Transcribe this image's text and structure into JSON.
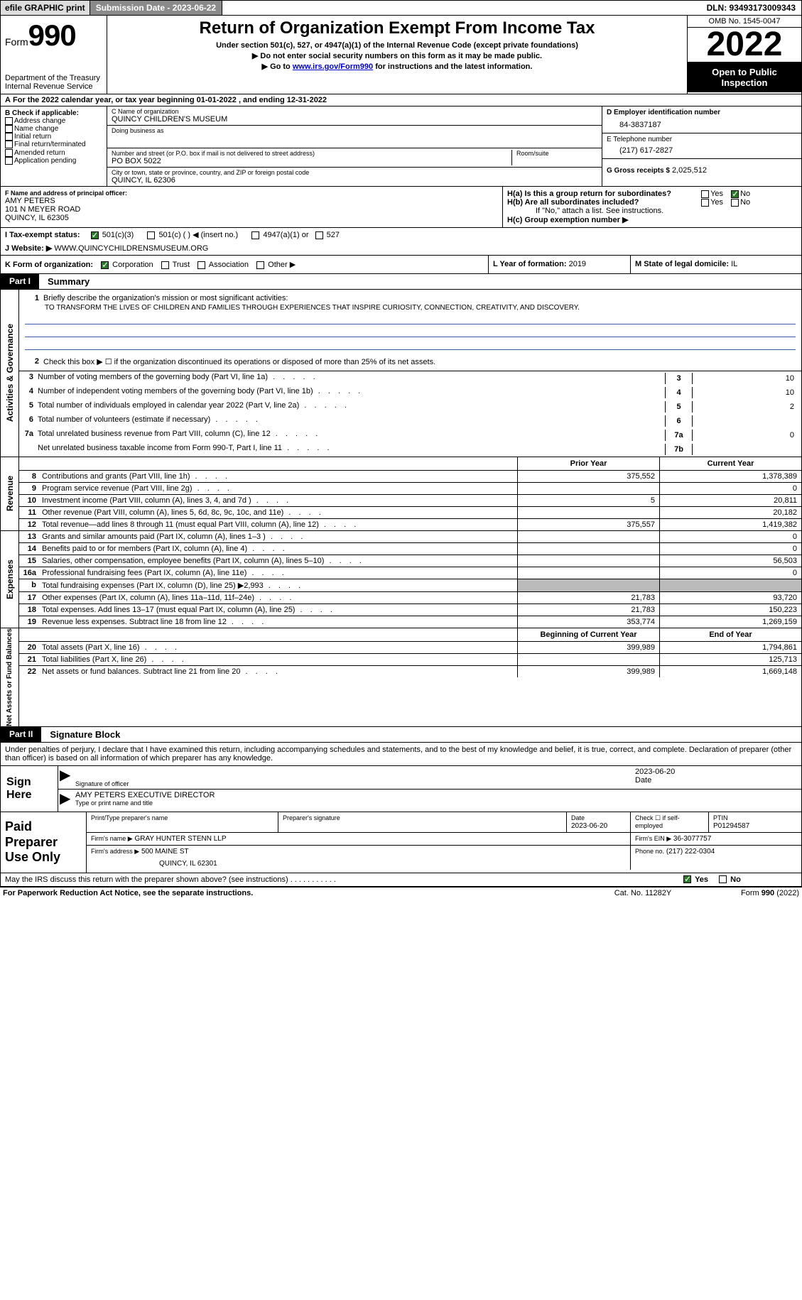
{
  "topbar": {
    "efile": "efile GRAPHIC print",
    "subdate": "Submission Date - 2023-06-22",
    "dln": "DLN: 93493173009343"
  },
  "header": {
    "form_label": "Form",
    "form_num": "990",
    "dept": "Department of the Treasury",
    "irs": "Internal Revenue Service",
    "title": "Return of Organization Exempt From Income Tax",
    "sub": "Under section 501(c), 527, or 4947(a)(1) of the Internal Revenue Code (except private foundations)",
    "note1": "▶ Do not enter social security numbers on this form as it may be made public.",
    "note2_pre": "▶ Go to ",
    "note2_link": "www.irs.gov/Form990",
    "note2_post": " for instructions and the latest information.",
    "omb": "OMB No. 1545-0047",
    "year": "2022",
    "inspect": "Open to Public Inspection"
  },
  "rowA": {
    "label": "A",
    "text": "For the 2022 calendar year, or tax year beginning 01-01-2022    , and ending 12-31-2022"
  },
  "B": {
    "label": "B Check if applicable:",
    "opts": [
      "Address change",
      "Name change",
      "Initial return",
      "Final return/terminated",
      "Amended return",
      "Application pending"
    ]
  },
  "C": {
    "name_lbl": "C Name of organization",
    "name": "QUINCY CHILDREN'S MUSEUM",
    "dba_lbl": "Doing business as",
    "addr_lbl": "Number and street (or P.O. box if mail is not delivered to street address)",
    "room_lbl": "Room/suite",
    "addr": "PO BOX 5022",
    "city_lbl": "City or town, state or province, country, and ZIP or foreign postal code",
    "city": "QUINCY, IL  62306"
  },
  "DEFG": {
    "d_lbl": "D Employer identification number",
    "d": "84-3837187",
    "e_lbl": "E Telephone number",
    "e": "(217) 617-2827",
    "g_lbl": "G Gross receipts $",
    "g": "2,025,512"
  },
  "F": {
    "lbl": "F  Name and address of principal officer:",
    "name": "AMY PETERS",
    "addr1": "101 N MEYER ROAD",
    "addr2": "QUINCY, IL  62305"
  },
  "H": {
    "a_lbl": "H(a)  Is this a group return for subordinates?",
    "b_lbl": "H(b)  Are all subordinates included?",
    "b_note": "If \"No,\" attach a list. See instructions.",
    "c_lbl": "H(c)  Group exemption number ▶"
  },
  "I": {
    "lbl": "I   Tax-exempt status:",
    "opts": [
      "501(c)(3)",
      "501(c) (  ) ◀ (insert no.)",
      "4947(a)(1) or",
      "527"
    ]
  },
  "J": {
    "lbl": "J   Website: ▶",
    "val": "WWW.QUINCYCHILDRENSMUSEUM.ORG"
  },
  "K": {
    "lbl": "K Form of organization:",
    "opts": [
      "Corporation",
      "Trust",
      "Association",
      "Other ▶"
    ]
  },
  "L": {
    "lbl": "L Year of formation:",
    "val": "2019"
  },
  "M": {
    "lbl": "M State of legal domicile:",
    "val": "IL"
  },
  "part1": {
    "tab": "Part I",
    "title": "Summary"
  },
  "summary": {
    "vlabel1": "Activities & Governance",
    "line1_lbl": "Briefly describe the organization's mission or most significant activities:",
    "line1_val": "TO TRANSFORM THE LIVES OF CHILDREN AND FAMILIES THROUGH EXPERIENCES THAT INSPIRE CURIOSITY, CONNECTION, CREATIVITY, AND DISCOVERY.",
    "line2": "Check this box ▶ ☐  if the organization discontinued its operations or disposed of more than 25% of its net assets.",
    "rows1": [
      {
        "n": "3",
        "t": "Number of voting members of the governing body (Part VI, line 1a)",
        "k": "3",
        "v": "10"
      },
      {
        "n": "4",
        "t": "Number of independent voting members of the governing body (Part VI, line 1b)",
        "k": "4",
        "v": "10"
      },
      {
        "n": "5",
        "t": "Total number of individuals employed in calendar year 2022 (Part V, line 2a)",
        "k": "5",
        "v": "2"
      },
      {
        "n": "6",
        "t": "Total number of volunteers (estimate if necessary)",
        "k": "6",
        "v": ""
      },
      {
        "n": "7a",
        "t": "Total unrelated business revenue from Part VIII, column (C), line 12",
        "k": "7a",
        "v": "0"
      },
      {
        "n": "",
        "t": "Net unrelated business taxable income from Form 990-T, Part I, line 11",
        "k": "7b",
        "v": ""
      }
    ]
  },
  "revenue": {
    "vlabel": "Revenue",
    "hdr_prior": "Prior Year",
    "hdr_curr": "Current Year",
    "rows": [
      {
        "n": "8",
        "t": "Contributions and grants (Part VIII, line 1h)",
        "p": "375,552",
        "c": "1,378,389"
      },
      {
        "n": "9",
        "t": "Program service revenue (Part VIII, line 2g)",
        "p": "",
        "c": "0"
      },
      {
        "n": "10",
        "t": "Investment income (Part VIII, column (A), lines 3, 4, and 7d )",
        "p": "5",
        "c": "20,811"
      },
      {
        "n": "11",
        "t": "Other revenue (Part VIII, column (A), lines 5, 6d, 8c, 9c, 10c, and 11e)",
        "p": "",
        "c": "20,182"
      },
      {
        "n": "12",
        "t": "Total revenue—add lines 8 through 11 (must equal Part VIII, column (A), line 12)",
        "p": "375,557",
        "c": "1,419,382"
      }
    ]
  },
  "expenses": {
    "vlabel": "Expenses",
    "rows": [
      {
        "n": "13",
        "t": "Grants and similar amounts paid (Part IX, column (A), lines 1–3 )",
        "p": "",
        "c": "0"
      },
      {
        "n": "14",
        "t": "Benefits paid to or for members (Part IX, column (A), line 4)",
        "p": "",
        "c": "0"
      },
      {
        "n": "15",
        "t": "Salaries, other compensation, employee benefits (Part IX, column (A), lines 5–10)",
        "p": "",
        "c": "56,503"
      },
      {
        "n": "16a",
        "t": "Professional fundraising fees (Part IX, column (A), line 11e)",
        "p": "",
        "c": "0"
      },
      {
        "n": "b",
        "t": "Total fundraising expenses (Part IX, column (D), line 25) ▶2,993",
        "p": "shade",
        "c": "shade"
      },
      {
        "n": "17",
        "t": "Other expenses (Part IX, column (A), lines 11a–11d, 11f–24e)",
        "p": "21,783",
        "c": "93,720"
      },
      {
        "n": "18",
        "t": "Total expenses. Add lines 13–17 (must equal Part IX, column (A), line 25)",
        "p": "21,783",
        "c": "150,223"
      },
      {
        "n": "19",
        "t": "Revenue less expenses. Subtract line 18 from line 12",
        "p": "353,774",
        "c": "1,269,159"
      }
    ]
  },
  "netassets": {
    "vlabel": "Net Assets or Fund Balances",
    "hdr_beg": "Beginning of Current Year",
    "hdr_end": "End of Year",
    "rows": [
      {
        "n": "20",
        "t": "Total assets (Part X, line 16)",
        "p": "399,989",
        "c": "1,794,861"
      },
      {
        "n": "21",
        "t": "Total liabilities (Part X, line 26)",
        "p": "",
        "c": "125,713"
      },
      {
        "n": "22",
        "t": "Net assets or fund balances. Subtract line 21 from line 20",
        "p": "399,989",
        "c": "1,669,148"
      }
    ]
  },
  "part2": {
    "tab": "Part II",
    "title": "Signature Block"
  },
  "sig": {
    "intro": "Under penalties of perjury, I declare that I have examined this return, including accompanying schedules and statements, and to the best of my knowledge and belief, it is true, correct, and complete. Declaration of preparer (other than officer) is based on all information of which preparer has any knowledge.",
    "sign_here": "Sign Here",
    "sig_officer": "Signature of officer",
    "sig_date": "2023-06-20",
    "name_title": "AMY PETERS  EXECUTIVE DIRECTOR",
    "name_title_lbl": "Type or print name and title"
  },
  "preparer": {
    "lbl": "Paid Preparer Use Only",
    "print_lbl": "Print/Type preparer's name",
    "sig_lbl": "Preparer's signature",
    "date_lbl": "Date",
    "date": "2023-06-20",
    "check_lbl": "Check ☐ if self-employed",
    "ptin_lbl": "PTIN",
    "ptin": "P01294587",
    "firm_name_lbl": "Firm's name    ▶",
    "firm_name": "GRAY HUNTER STENN LLP",
    "firm_ein_lbl": "Firm's EIN ▶",
    "firm_ein": "36-3077757",
    "firm_addr_lbl": "Firm's address ▶",
    "firm_addr1": "500 MAINE ST",
    "firm_addr2": "QUINCY, IL  62301",
    "phone_lbl": "Phone no.",
    "phone": "(217) 222-0304"
  },
  "discuss": {
    "text": "May the IRS discuss this return with the preparer shown above? (see instructions)",
    "yes": "Yes",
    "no": "No"
  },
  "footer": {
    "left": "For Paperwork Reduction Act Notice, see the separate instructions.",
    "mid": "Cat. No. 11282Y",
    "right": "Form 990 (2022)"
  }
}
